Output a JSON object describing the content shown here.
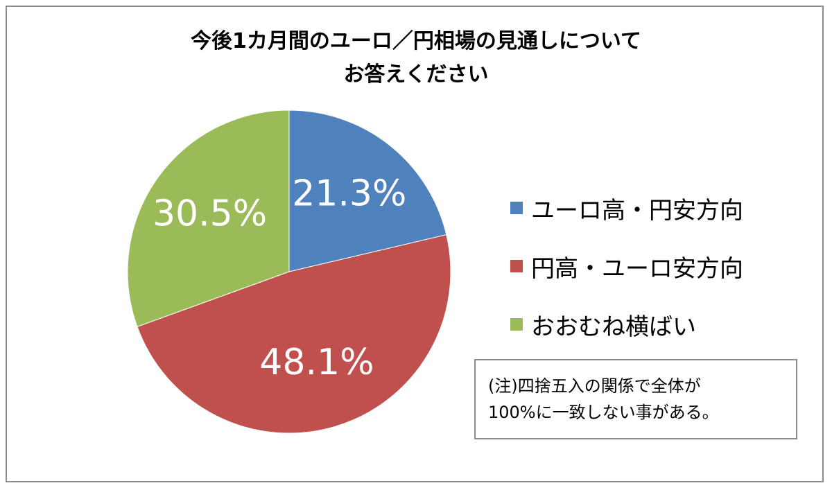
{
  "chart_data": {
    "type": "pie",
    "title": "今後1カ月間のユーロ／円相場の見通しについてお答えください",
    "title_lines": [
      "今後1カ月間のユーロ／円相場の見通しについて",
      "お答えください"
    ],
    "slices": [
      {
        "label": "ユーロ高・円安方向",
        "value": 21.3,
        "display": "21.3%",
        "color": "#4f81bd"
      },
      {
        "label": "円高・ユーロ安方向",
        "value": 48.1,
        "display": "48.1%",
        "color": "#c0504d"
      },
      {
        "label": "おおむね横ばい",
        "value": 30.5,
        "display": "30.5%",
        "color": "#9bbb59"
      }
    ],
    "start_angle_deg": 0,
    "direction": "clockwise",
    "legend_position": "right"
  },
  "note": {
    "lines": [
      "(注)四捨五入の関係で全体が",
      "100%に一致しない事がある。"
    ]
  },
  "colors": {
    "slice_label": "#ffffff",
    "border": "#8c8c8c",
    "background": "#ffffff"
  }
}
